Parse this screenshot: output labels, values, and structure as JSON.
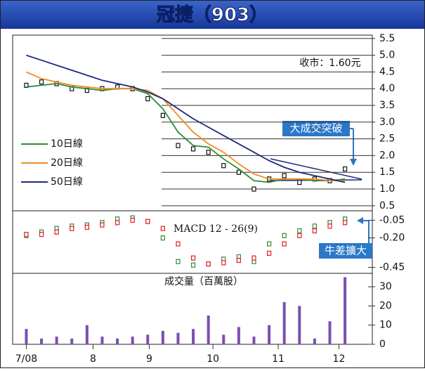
{
  "chart_data": [
    {
      "type": "line",
      "title": "冠捷（903）",
      "annotations": [
        "收市：1.60元",
        "大成交突破"
      ],
      "x": [
        0,
        1,
        2,
        3,
        4,
        5,
        6,
        7,
        8,
        9,
        10,
        11,
        12,
        13,
        14,
        15,
        16,
        17,
        18,
        19,
        20,
        21
      ],
      "xlim": [
        -0.9,
        22.8
      ],
      "ylim": [
        0.35,
        5.6
      ],
      "yticks": [
        5.5,
        {
          "value": 5,
          "label": "5.0"
        },
        4.5,
        {
          "value": 4,
          "label": "4.0"
        },
        3.5,
        {
          "value": 3,
          "label": "3.0"
        },
        2.5,
        {
          "value": 2,
          "label": "2.0"
        },
        1.5,
        {
          "value": 1,
          "label": "1.0"
        },
        0.5
      ],
      "grid": true,
      "legend": "left",
      "series": [
        {
          "color": "#111111",
          "values": [
            4.1,
            4.2,
            4.15,
            4.0,
            3.95,
            4.0,
            4.05,
            4.0,
            3.7,
            3.2,
            2.3,
            2.2,
            2.1,
            1.7,
            1.5,
            1.0,
            1.3,
            1.4,
            1.2,
            1.3,
            1.25,
            1.6
          ]
        },
        {
          "name": "10日線",
          "color": "#2e8b3a",
          "values": [
            4.05,
            4.1,
            4.15,
            4.05,
            4.0,
            3.95,
            4.0,
            4.0,
            3.85,
            3.4,
            2.7,
            2.3,
            2.25,
            1.9,
            1.6,
            1.25,
            1.2,
            1.3,
            1.3,
            1.25,
            1.25,
            1.3
          ]
        },
        {
          "name": "20日線",
          "color": "#f08a20",
          "values": [
            4.5,
            4.3,
            4.2,
            4.1,
            4.05,
            4.0,
            4.0,
            4.0,
            3.95,
            3.7,
            3.2,
            2.7,
            2.35,
            2.1,
            1.75,
            1.45,
            1.3,
            1.3,
            1.3,
            1.3,
            1.25,
            1.25
          ]
        },
        {
          "name": "50日線",
          "color": "#1f2a7a",
          "values": [
            5.0,
            4.85,
            4.7,
            4.55,
            4.4,
            4.25,
            4.15,
            4.05,
            3.9,
            3.7,
            3.4,
            3.1,
            2.85,
            2.6,
            2.35,
            2.1,
            1.85,
            1.65,
            1.5,
            1.4,
            1.3,
            1.2
          ]
        }
      ]
    },
    {
      "type": "line",
      "title": "MACD 12 - 26(9)",
      "annotations": [
        "牛差擴大"
      ],
      "x": [
        0,
        1,
        2,
        3,
        4,
        5,
        6,
        7,
        8,
        9,
        10,
        11,
        12,
        13,
        14,
        15,
        16,
        17,
        18,
        19,
        20,
        21
      ],
      "xlim": [
        -0.9,
        22.8
      ],
      "ylim": [
        -0.5,
        0.03
      ],
      "yticks": [
        -0.05,
        {
          "value": -0.2,
          "label": "-0.20"
        },
        -0.45
      ],
      "series": [
        {
          "color": "#2e8b3a",
          "values": [
            -0.18,
            -0.15,
            -0.12,
            -0.1,
            -0.09,
            -0.07,
            -0.04,
            -0.03,
            -0.06,
            -0.2,
            -0.4,
            -0.43,
            -0.42,
            -0.38,
            -0.36,
            -0.4,
            -0.25,
            -0.18,
            -0.14,
            -0.1,
            -0.07,
            -0.04
          ]
        },
        {
          "color": "#e02020",
          "values": [
            -0.17,
            -0.17,
            -0.15,
            -0.12,
            -0.11,
            -0.09,
            -0.07,
            -0.05,
            -0.06,
            -0.12,
            -0.25,
            -0.37,
            -0.42,
            -0.41,
            -0.39,
            -0.37,
            -0.33,
            -0.25,
            -0.18,
            -0.14,
            -0.1,
            -0.07
          ]
        }
      ]
    },
    {
      "type": "bar",
      "title": "成交量（百萬股）",
      "x": [
        0,
        1,
        2,
        3,
        4,
        5,
        6,
        7,
        8,
        9,
        10,
        11,
        12,
        13,
        14,
        15,
        16,
        17,
        18,
        19,
        20,
        21
      ],
      "xlim": [
        -0.9,
        22.8
      ],
      "xticks": [
        {
          "value": 0,
          "label": "7/08"
        },
        {
          "value": 4.4,
          "label": "8"
        },
        {
          "value": 8.1,
          "label": "9"
        },
        {
          "value": 12.3,
          "label": "10"
        },
        {
          "value": 16.6,
          "label": "11"
        },
        {
          "value": 20.6,
          "label": "12"
        }
      ],
      "ylim": [
        0,
        37
      ],
      "yticks": [
        0,
        10,
        20,
        30
      ],
      "color": "#7a4fb0",
      "values": [
        8,
        3,
        4,
        3,
        10,
        4,
        3,
        4,
        5,
        7,
        6,
        8,
        15,
        5,
        9,
        4,
        10,
        22,
        20,
        3,
        12,
        35
      ]
    }
  ]
}
